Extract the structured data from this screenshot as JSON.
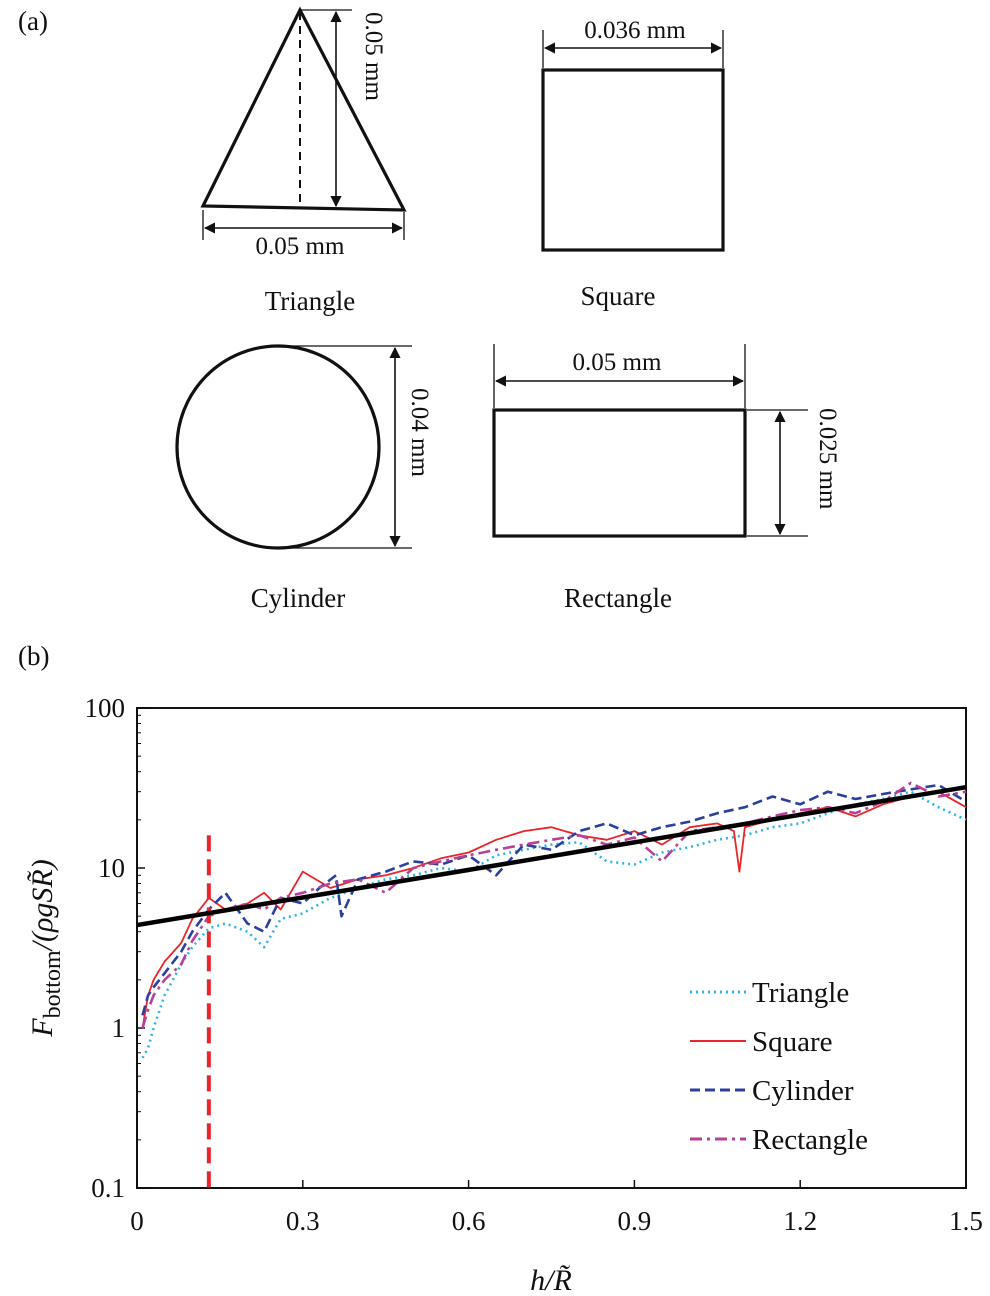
{
  "panel_a": {
    "label": "(a)",
    "triangle": {
      "name": "Triangle",
      "height": "0.05 mm",
      "base": "0.05 mm"
    },
    "square": {
      "name": "Square",
      "side": "0.036 mm"
    },
    "cylinder": {
      "name": "Cylinder",
      "diameter": "0.04 mm"
    },
    "rectangle": {
      "name": "Rectangle",
      "width": "0.05 mm",
      "height": "0.025 mm"
    }
  },
  "panel_b": {
    "label": "(b)"
  },
  "chart_data": {
    "type": "line",
    "yscale": "log",
    "xlim": [
      0,
      1.5
    ],
    "ylim": [
      0.1,
      100
    ],
    "xlabel": "h/R̃",
    "ylabel_parts": {
      "main": "F",
      "sub": "bottom",
      "rest": "/(ρgSR̃)"
    },
    "xticks": [
      "0",
      "0.3",
      "0.6",
      "0.9",
      "1.2",
      "1.5"
    ],
    "xtick_values": [
      0,
      0.3,
      0.6,
      0.9,
      1.2,
      1.5
    ],
    "yticks": [
      "0.1",
      "1",
      "10",
      "100"
    ],
    "ytick_values": [
      0.1,
      1,
      10,
      100
    ],
    "legend_position": "bottom-right",
    "reference_vline": {
      "x": 0.13,
      "color": "#e8262b"
    },
    "fit_line": {
      "x": [
        0,
        1.5
      ],
      "y": [
        4.4,
        32
      ],
      "color": "#000000"
    },
    "series": [
      {
        "name": "Triangle",
        "color": "#2cb5e6",
        "dash": "dotted",
        "x": [
          0.01,
          0.02,
          0.03,
          0.05,
          0.08,
          0.1,
          0.13,
          0.16,
          0.2,
          0.23,
          0.26,
          0.3,
          0.35,
          0.4,
          0.45,
          0.5,
          0.55,
          0.6,
          0.65,
          0.7,
          0.75,
          0.8,
          0.85,
          0.9,
          0.95,
          1.0,
          1.05,
          1.1,
          1.15,
          1.2,
          1.25,
          1.3,
          1.35,
          1.4,
          1.45,
          1.5
        ],
        "y": [
          0.65,
          0.75,
          1.0,
          1.6,
          2.5,
          3.2,
          4.2,
          4.5,
          4.0,
          3.2,
          4.8,
          5.2,
          6.5,
          7.5,
          8.5,
          9.0,
          10.0,
          9.5,
          12.0,
          13.0,
          14.0,
          14.5,
          11.0,
          10.5,
          12.5,
          13.5,
          15.0,
          16.0,
          18.0,
          19.0,
          22.0,
          25.0,
          27.0,
          30.0,
          24.0,
          20.0
        ]
      },
      {
        "name": "Square",
        "color": "#e8262b",
        "dash": "solid",
        "x": [
          0.01,
          0.02,
          0.03,
          0.05,
          0.08,
          0.1,
          0.13,
          0.16,
          0.2,
          0.23,
          0.26,
          0.3,
          0.35,
          0.4,
          0.45,
          0.5,
          0.55,
          0.6,
          0.65,
          0.7,
          0.75,
          0.8,
          0.85,
          0.9,
          0.95,
          1.0,
          1.05,
          1.08,
          1.09,
          1.1,
          1.15,
          1.2,
          1.25,
          1.3,
          1.35,
          1.4,
          1.45,
          1.5
        ],
        "y": [
          1.0,
          1.6,
          2.0,
          2.6,
          3.4,
          4.8,
          6.5,
          5.5,
          6.0,
          7.0,
          5.5,
          9.5,
          7.5,
          8.5,
          9.0,
          10.0,
          11.5,
          12.5,
          15.0,
          17.0,
          18.0,
          16.0,
          15.0,
          17.0,
          14.0,
          18.0,
          19.0,
          17.0,
          9.5,
          18.0,
          20.0,
          22.0,
          24.0,
          21.0,
          25.0,
          28.0,
          30.0,
          24.0
        ]
      },
      {
        "name": "Cylinder",
        "color": "#2b3f9e",
        "dash": "dashed",
        "x": [
          0.01,
          0.02,
          0.03,
          0.05,
          0.08,
          0.1,
          0.13,
          0.16,
          0.2,
          0.23,
          0.26,
          0.3,
          0.33,
          0.36,
          0.37,
          0.4,
          0.45,
          0.5,
          0.55,
          0.6,
          0.65,
          0.7,
          0.75,
          0.8,
          0.85,
          0.9,
          0.95,
          1.0,
          1.05,
          1.1,
          1.15,
          1.2,
          1.25,
          1.3,
          1.35,
          1.4,
          1.45,
          1.5
        ],
        "y": [
          1.2,
          1.6,
          1.8,
          2.2,
          3.0,
          4.0,
          5.5,
          7.0,
          4.5,
          4.0,
          6.5,
          6.0,
          7.5,
          9.0,
          5.0,
          8.5,
          9.5,
          11.0,
          10.5,
          12.0,
          9.0,
          14.0,
          13.0,
          17.0,
          19.0,
          16.0,
          18.0,
          19.5,
          22.0,
          24.0,
          28.0,
          25.0,
          30.0,
          27.0,
          29.0,
          31.0,
          33.0,
          26.0
        ]
      },
      {
        "name": "Rectangle",
        "color": "#b8409a",
        "dash": "dashdot",
        "x": [
          0.01,
          0.02,
          0.03,
          0.05,
          0.08,
          0.1,
          0.13,
          0.16,
          0.2,
          0.23,
          0.26,
          0.3,
          0.35,
          0.4,
          0.45,
          0.5,
          0.55,
          0.6,
          0.65,
          0.7,
          0.75,
          0.8,
          0.85,
          0.9,
          0.95,
          1.0,
          1.05,
          1.1,
          1.15,
          1.2,
          1.25,
          1.3,
          1.35,
          1.4,
          1.45,
          1.5
        ],
        "y": [
          1.0,
          1.3,
          1.6,
          2.0,
          2.5,
          3.5,
          5.0,
          5.5,
          6.0,
          5.5,
          6.5,
          7.0,
          8.0,
          8.5,
          7.0,
          10.0,
          11.0,
          12.0,
          13.0,
          14.0,
          15.0,
          16.0,
          14.0,
          15.5,
          11.0,
          17.0,
          18.0,
          19.0,
          21.0,
          23.0,
          24.0,
          22.0,
          26.0,
          34.0,
          28.0,
          30.0
        ]
      }
    ]
  }
}
